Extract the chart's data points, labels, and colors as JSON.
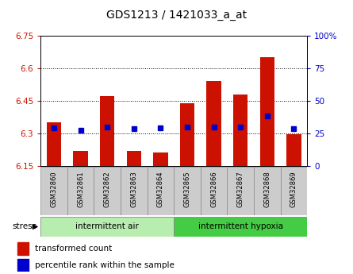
{
  "title": "GDS1213 / 1421033_a_at",
  "samples": [
    "GSM32860",
    "GSM32861",
    "GSM32862",
    "GSM32863",
    "GSM32864",
    "GSM32865",
    "GSM32866",
    "GSM32867",
    "GSM32868",
    "GSM32869"
  ],
  "bar_values": [
    6.35,
    6.22,
    6.47,
    6.22,
    6.21,
    6.44,
    6.54,
    6.48,
    6.65,
    6.295
  ],
  "percentile_values": [
    6.325,
    6.315,
    6.33,
    6.32,
    6.325,
    6.33,
    6.33,
    6.33,
    6.38,
    6.32
  ],
  "bar_base": 6.15,
  "ylim_left": [
    6.15,
    6.75
  ],
  "ylim_right": [
    0,
    100
  ],
  "yticks_left": [
    6.15,
    6.3,
    6.45,
    6.6,
    6.75
  ],
  "yticks_right": [
    0,
    25,
    50,
    75,
    100
  ],
  "ytick_labels_left": [
    "6.15",
    "6.3",
    "6.45",
    "6.6",
    "6.75"
  ],
  "ytick_labels_right": [
    "0",
    "25",
    "50",
    "75",
    "100%"
  ],
  "hgrid_vals": [
    6.3,
    6.45,
    6.6
  ],
  "groups": [
    {
      "label": "intermittent air",
      "start": 0,
      "end": 5,
      "color": "#b8edb0"
    },
    {
      "label": "intermittent hypoxia",
      "start": 5,
      "end": 10,
      "color": "#44cc44"
    }
  ],
  "stress_label": "stress",
  "bar_color": "#cc1100",
  "percentile_color": "#0000cc",
  "bar_width": 0.55,
  "bg_plot": "#ffffff",
  "sample_box_color": "#cccccc",
  "legend_items": [
    {
      "color": "#cc1100",
      "label": "transformed count"
    },
    {
      "color": "#0000cc",
      "label": "percentile rank within the sample"
    }
  ]
}
